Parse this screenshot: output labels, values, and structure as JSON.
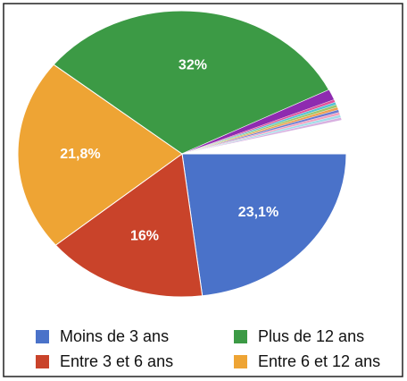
{
  "chart_data": {
    "type": "pie",
    "categories": [
      "Moins de 3 ans",
      "Entre 3 et 6 ans",
      "Entre 6 et 12 ans",
      "Plus de 12 ans",
      null,
      null,
      null,
      null,
      null,
      null,
      null,
      null,
      null,
      null
    ],
    "values": [
      23.1,
      16,
      21.8,
      32,
      1.2,
      0.3,
      0.3,
      0.3,
      0.3,
      0.3,
      0.3,
      0.3,
      0.3,
      3.8
    ],
    "value_labels": [
      "23,1%",
      "16%",
      "21,8%",
      "32%",
      null,
      null,
      null,
      null,
      null,
      null,
      null,
      null,
      null,
      null
    ],
    "colors": [
      "#4a72c9",
      "#c9432a",
      "#eea434",
      "#3c9a45",
      "#8e2bb0",
      "#e0529a",
      "#52c2d4",
      "#9cc76a",
      "#f0a050",
      "#6a7ad0",
      "#f2a0c0",
      "#a0dce8",
      "#d8b0e0",
      "#ffffff"
    ],
    "legend": true
  }
}
